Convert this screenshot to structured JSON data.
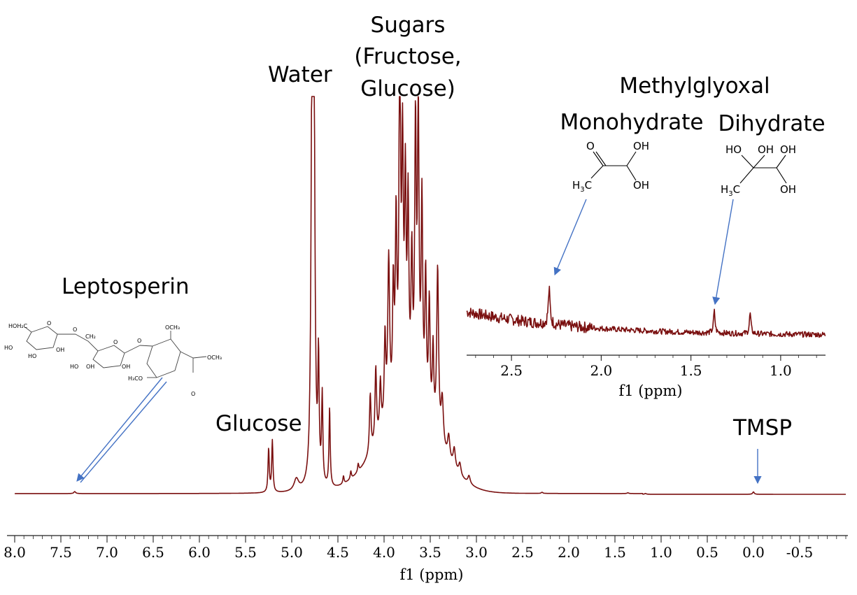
{
  "chart_data": {
    "type": "line",
    "series_color": "#7a0f0f",
    "arrow_color": "#4472c4",
    "main": {
      "xlabel": "f1 (ppm)",
      "xlim": [
        8.0,
        -1.0
      ],
      "x_reversed": true,
      "tick_labels": [
        "8.0",
        "7.5",
        "7.0",
        "6.5",
        "6.0",
        "5.5",
        "5.0",
        "4.5",
        "4.0",
        "3.5",
        "3.0",
        "2.5",
        "2.0",
        "1.5",
        "1.0",
        "0.5",
        "0.0",
        "-0.5"
      ],
      "tick_values": [
        8.0,
        7.5,
        7.0,
        6.5,
        6.0,
        5.5,
        5.0,
        4.5,
        4.0,
        3.5,
        3.0,
        2.5,
        2.0,
        1.5,
        1.0,
        0.5,
        0.0,
        -0.5
      ],
      "peaks": [
        {
          "x": 7.35,
          "h": 0.005,
          "w": 0.012
        },
        {
          "x": 5.25,
          "h": 0.11,
          "w": 0.008
        },
        {
          "x": 5.21,
          "h": 0.13,
          "w": 0.008
        },
        {
          "x": 4.95,
          "h": 0.03,
          "w": 0.03
        },
        {
          "x": 4.78,
          "h": 1.0,
          "w": 0.012
        },
        {
          "x": 4.76,
          "h": 1.0,
          "w": 0.012
        },
        {
          "x": 4.71,
          "h": 0.3,
          "w": 0.008
        },
        {
          "x": 4.67,
          "h": 0.22,
          "w": 0.008
        },
        {
          "x": 4.59,
          "h": 0.2,
          "w": 0.008
        },
        {
          "x": 4.44,
          "h": 0.02,
          "w": 0.008
        },
        {
          "x": 4.36,
          "h": 0.02,
          "w": 0.008
        },
        {
          "x": 4.28,
          "h": 0.02,
          "w": 0.008
        },
        {
          "x": 4.15,
          "h": 0.15,
          "w": 0.01
        },
        {
          "x": 4.09,
          "h": 0.19,
          "w": 0.01
        },
        {
          "x": 4.04,
          "h": 0.13,
          "w": 0.01
        },
        {
          "x": 3.99,
          "h": 0.22,
          "w": 0.01
        },
        {
          "x": 3.95,
          "h": 0.4,
          "w": 0.012
        },
        {
          "x": 3.9,
          "h": 0.3,
          "w": 0.01
        },
        {
          "x": 3.87,
          "h": 0.45,
          "w": 0.01
        },
        {
          "x": 3.83,
          "h": 0.93,
          "w": 0.01
        },
        {
          "x": 3.8,
          "h": 0.6,
          "w": 0.01
        },
        {
          "x": 3.77,
          "h": 0.52,
          "w": 0.01
        },
        {
          "x": 3.74,
          "h": 0.48,
          "w": 0.01
        },
        {
          "x": 3.7,
          "h": 0.35,
          "w": 0.01
        },
        {
          "x": 3.66,
          "h": 0.68,
          "w": 0.01
        },
        {
          "x": 3.63,
          "h": 0.73,
          "w": 0.01
        },
        {
          "x": 3.59,
          "h": 0.52,
          "w": 0.01
        },
        {
          "x": 3.55,
          "h": 0.35,
          "w": 0.01
        },
        {
          "x": 3.51,
          "h": 0.3,
          "w": 0.01
        },
        {
          "x": 3.47,
          "h": 0.2,
          "w": 0.01
        },
        {
          "x": 3.42,
          "h": 0.43,
          "w": 0.012
        },
        {
          "x": 3.37,
          "h": 0.12,
          "w": 0.015
        },
        {
          "x": 3.3,
          "h": 0.06,
          "w": 0.015
        },
        {
          "x": 3.24,
          "h": 0.05,
          "w": 0.015
        },
        {
          "x": 3.18,
          "h": 0.03,
          "w": 0.015
        },
        {
          "x": 3.08,
          "h": 0.02,
          "w": 0.015
        },
        {
          "x": 2.29,
          "h": 0.003,
          "w": 0.01
        },
        {
          "x": 1.36,
          "h": 0.002,
          "w": 0.01
        },
        {
          "x": 1.17,
          "h": 0.002,
          "w": 0.01
        },
        {
          "x": 0.0,
          "h": 0.006,
          "w": 0.01
        }
      ],
      "hump": [
        {
          "x": 3.75,
          "h": 0.2,
          "w": 0.45
        }
      ]
    },
    "inset": {
      "xlabel": "f1 (ppm)",
      "xlim": [
        2.75,
        0.75
      ],
      "tick_labels": [
        "2.5",
        "2.0",
        "1.5",
        "1.0"
      ],
      "tick_values": [
        2.5,
        2.0,
        1.5,
        1.0
      ],
      "peaks": [
        {
          "x": 2.29,
          "h": 0.55,
          "w": 0.006
        },
        {
          "x": 1.37,
          "h": 0.35,
          "w": 0.005
        },
        {
          "x": 1.17,
          "h": 0.33,
          "w": 0.005
        }
      ]
    }
  },
  "annotations": {
    "leptosperin": "Leptosperin",
    "glucose": "Glucose",
    "water": "Water",
    "sugars_line1": "Sugars",
    "sugars_line2": "(Fructose,",
    "sugars_line3": "Glucose)",
    "methylglyoxal": "Methylglyoxal",
    "monohydrate": "Monohydrate",
    "dihydrate": "Dihydrate",
    "tmsp": "TMSP"
  },
  "structures": {
    "monohydrate": {
      "o": "O",
      "oh1": "OH",
      "oh2": "OH",
      "h3c": "H",
      "h3c_sub": "3",
      "h3c_c": "C"
    },
    "dihydrate": {
      "ho": "HO",
      "oh1": "OH",
      "oh2": "OH",
      "oh3": "OH",
      "h3c": "H",
      "h3c_sub": "3",
      "h3c_c": "C"
    },
    "leptosperin": {
      "hoh2c": "HOH₂C",
      "ch2": "CH₂",
      "och3_top": "OCH₃",
      "och3_right": "OCH₃",
      "h3co": "H₃CO",
      "ho1": "HO",
      "oh1": "OH",
      "oh2": "OH",
      "ho2": "HO",
      "ho3": "HO",
      "oh3": "OH",
      "o_ring1": "O",
      "o_ring2": "O",
      "o_link": "O",
      "o_link2": "O",
      "o_ester": "O"
    }
  }
}
